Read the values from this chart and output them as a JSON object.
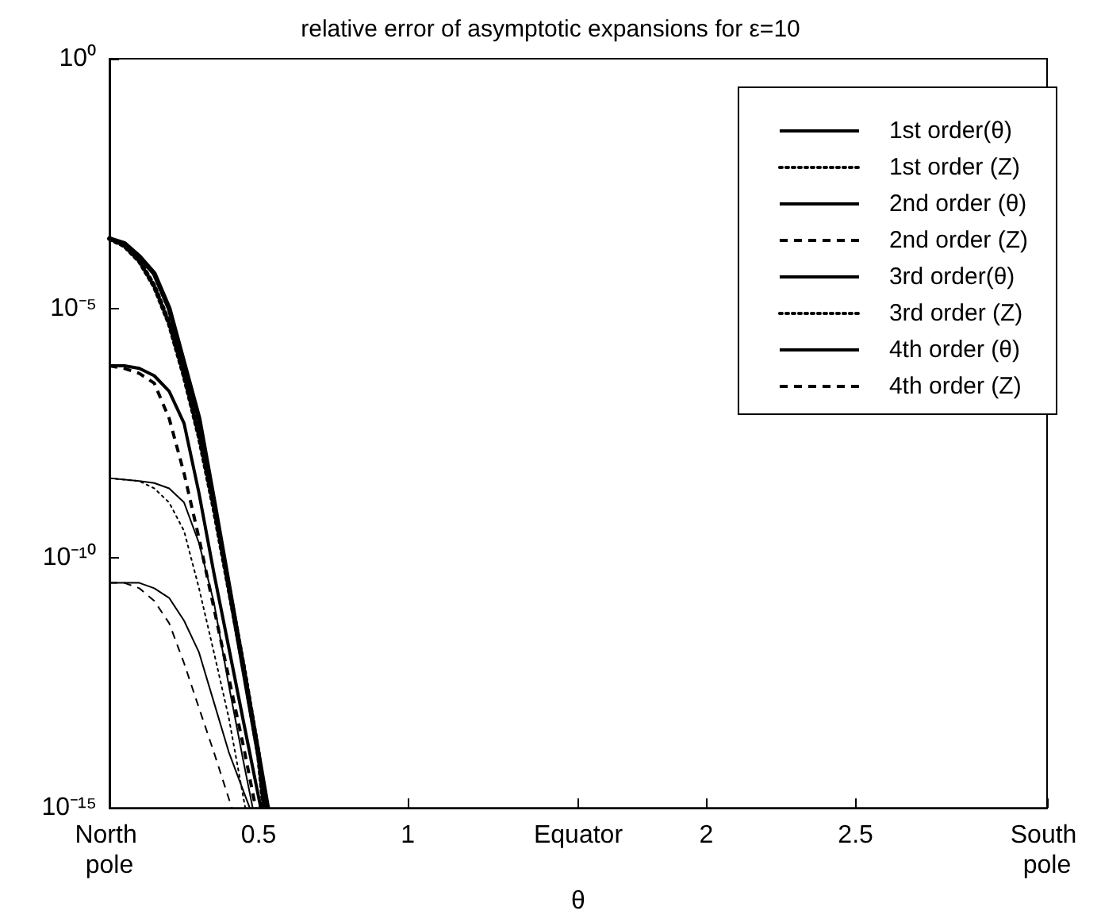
{
  "chart_data": {
    "type": "line",
    "title": "relative error of asymptotic expansions for ε=10",
    "xlabel": "θ",
    "xlim": [
      0,
      3.1416
    ],
    "xticks": [
      {
        "value": 0,
        "label": "North pole"
      },
      0.5,
      1,
      {
        "value": 1.5708,
        "label": "Equator"
      },
      2,
      2.5,
      {
        "value": 3.1416,
        "label": "South pole"
      }
    ],
    "ylim": [
      1e-15,
      1
    ],
    "yticks": [
      {
        "value": 1e-15,
        "label": "10⁻¹⁵"
      },
      {
        "value": 1e-10,
        "label": "10⁻¹⁰"
      },
      {
        "value": 1e-05,
        "label": "10⁻⁵"
      },
      {
        "value": 1,
        "label": "10⁰"
      }
    ],
    "log": "y",
    "grid": false,
    "legend": "top right",
    "marker": "none",
    "series": [
      {
        "name": "1st order(θ)",
        "color": "#000000",
        "line_style": "solid",
        "x": [
          0,
          0.05,
          0.1,
          0.15,
          0.2,
          0.25,
          0.3,
          0.35,
          0.4,
          0.45,
          0.5,
          0.53
        ],
        "values": [
          0.00025,
          0.0002,
          0.00011,
          5e-05,
          1e-05,
          7.9e-07,
          6.3e-08,
          1.4e-09,
          2.8e-11,
          5.6e-13,
          1.1e-14,
          1e-15
        ]
      },
      {
        "name": "1st order (Z)",
        "color": "#000000",
        "line_style": "dotted",
        "x": [
          0,
          0.05,
          0.1,
          0.15,
          0.2,
          0.25,
          0.3,
          0.35,
          0.4,
          0.45,
          0.5,
          0.517
        ],
        "values": [
          0.00025,
          0.00018,
          8.9e-05,
          2.8e-05,
          5e-06,
          4.5e-07,
          2.8e-08,
          1e-09,
          2.5e-11,
          6.3e-13,
          1.1e-14,
          1e-15
        ]
      },
      {
        "name": "2nd order (θ)",
        "color": "#000000",
        "line_style": "solid",
        "x": [
          0,
          0.05,
          0.1,
          0.15,
          0.2,
          0.25,
          0.3,
          0.35,
          0.4,
          0.45,
          0.507
        ],
        "values": [
          7.1e-07,
          7.1e-07,
          6.3e-07,
          4.5e-07,
          2.2e-07,
          5e-08,
          2e-09,
          5e-11,
          1.6e-12,
          5e-14,
          1e-15
        ]
      },
      {
        "name": "2nd order (Z)",
        "color": "#000000",
        "line_style": "dashed",
        "x": [
          0,
          0.05,
          0.1,
          0.15,
          0.2,
          0.25,
          0.3,
          0.35,
          0.4,
          0.45,
          0.49
        ],
        "values": [
          7.1e-07,
          6.3e-07,
          5e-07,
          3.2e-07,
          6.3e-08,
          5e-09,
          2.5e-10,
          1e-11,
          4e-13,
          1.6e-14,
          1e-15
        ]
      },
      {
        "name": "3rd order(θ)",
        "color": "#000000",
        "line_style": "solid",
        "x": [
          0,
          0.1,
          0.15,
          0.2,
          0.25,
          0.3,
          0.35,
          0.4,
          0.45,
          0.48
        ],
        "values": [
          4e-09,
          3.5e-09,
          3.2e-09,
          2.5e-09,
          1.3e-09,
          2e-10,
          1.3e-11,
          2.8e-13,
          7.9e-15,
          1e-15
        ]
      },
      {
        "name": "3rd order (Z)",
        "color": "#000000",
        "line_style": "dotted",
        "x": [
          0,
          0.1,
          0.15,
          0.2,
          0.25,
          0.3,
          0.35,
          0.4,
          0.455
        ],
        "values": [
          4e-09,
          3.5e-09,
          2.5e-09,
          1.3e-09,
          3.5e-10,
          2.5e-11,
          1.3e-12,
          6.3e-14,
          1e-15
        ]
      },
      {
        "name": "4th order (θ)",
        "color": "#000000",
        "line_style": "solid",
        "x": [
          0,
          0.1,
          0.15,
          0.2,
          0.25,
          0.3,
          0.35,
          0.4,
          0.47
        ],
        "values": [
          3.2e-11,
          3.2e-11,
          2.5e-11,
          1.6e-11,
          5.6e-12,
          1.3e-12,
          1.3e-13,
          1.3e-14,
          1e-15
        ]
      },
      {
        "name": "4th order (Z)",
        "color": "#000000",
        "line_style": "dashed",
        "x": [
          0,
          0.05,
          0.1,
          0.15,
          0.2,
          0.25,
          0.3,
          0.35,
          0.41
        ],
        "values": [
          3.2e-11,
          3.2e-11,
          2.5e-11,
          1.4e-11,
          5e-12,
          7.9e-13,
          1e-13,
          1.3e-14,
          1e-15
        ]
      }
    ]
  }
}
